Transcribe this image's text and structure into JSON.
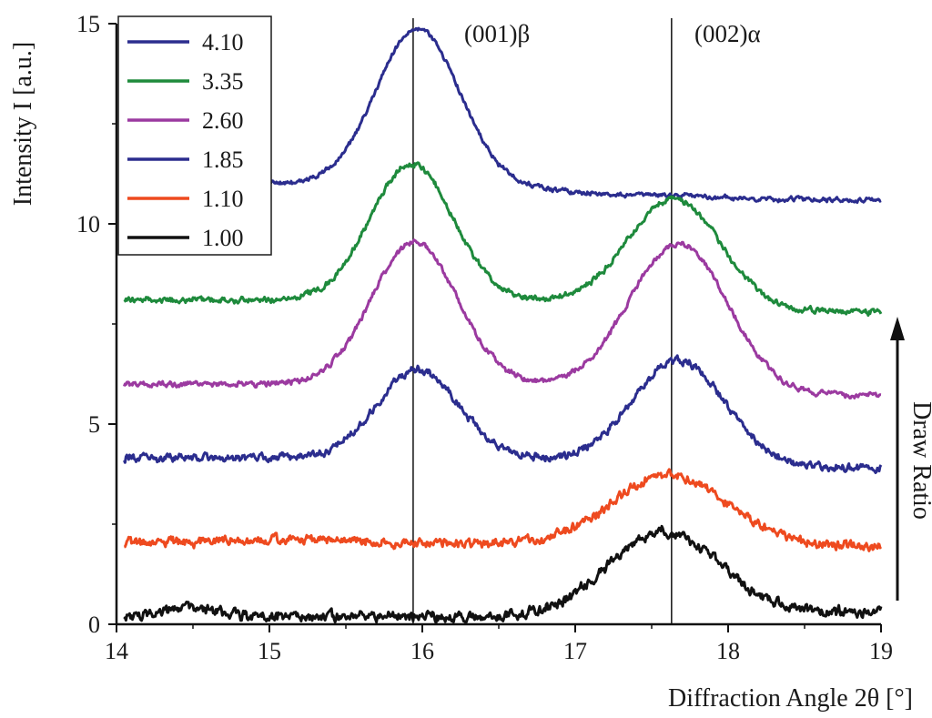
{
  "chart_data": {
    "type": "line",
    "title": "",
    "xlabel": "Diffraction Angle 2θ [°]",
    "ylabel": "Intensity I [a.u.]",
    "xlim": [
      14,
      19
    ],
    "ylim": [
      0,
      15
    ],
    "x_ticks": [
      14,
      15,
      16,
      17,
      18,
      19
    ],
    "y_ticks": [
      0,
      5,
      10,
      15
    ],
    "grid": false,
    "legend_position": "top-left",
    "x_start": 14.05,
    "x_end": 19.0,
    "reference_lines": [
      {
        "x": 15.94,
        "label": "(001)β"
      },
      {
        "x": 17.63,
        "label": "(002)α"
      }
    ],
    "arrow_label": "Draw Ratio",
    "series": [
      {
        "name": "4.10",
        "color": "#2b2d8e",
        "baseline": 11.0,
        "tail": 10.6,
        "tail_center": 17.0,
        "noise": 0.04,
        "peaks": [
          {
            "center": 15.97,
            "height": 3.9,
            "width": 0.27
          },
          {
            "center": 17.7,
            "height": 0.08,
            "width": 0.2
          }
        ]
      },
      {
        "name": "3.35",
        "color": "#1e8a3c",
        "baseline": 8.1,
        "tail": 7.8,
        "tail_center": 17.5,
        "noise": 0.05,
        "peaks": [
          {
            "center": 15.93,
            "height": 3.4,
            "width": 0.27
          },
          {
            "center": 17.65,
            "height": 2.7,
            "width": 0.3
          }
        ]
      },
      {
        "name": "2.60",
        "color": "#9b3aa0",
        "baseline": 6.0,
        "tail": 5.7,
        "tail_center": 17.5,
        "noise": 0.05,
        "peaks": [
          {
            "center": 15.95,
            "height": 3.55,
            "width": 0.28
          },
          {
            "center": 17.68,
            "height": 3.7,
            "width": 0.32
          }
        ]
      },
      {
        "name": "1.85",
        "color": "#2b2d8e",
        "baseline": 4.15,
        "tail": 3.9,
        "tail_center": 17.5,
        "noise": 0.07,
        "peaks": [
          {
            "center": 15.97,
            "height": 2.2,
            "width": 0.27
          },
          {
            "center": 17.68,
            "height": 2.6,
            "width": 0.3
          }
        ]
      },
      {
        "name": "1.10",
        "color": "#ee4a1f",
        "baseline": 2.0,
        "tail": 1.95,
        "tail_center": 17.5,
        "noise": 0.08,
        "peaks": [
          {
            "center": 15.0,
            "height": 0.1,
            "width": 0.5
          },
          {
            "center": 17.62,
            "height": 1.75,
            "width": 0.38
          }
        ]
      },
      {
        "name": "1.00",
        "color": "#111111",
        "baseline": 0.2,
        "tail": 0.3,
        "tail_center": 17.5,
        "noise": 0.09,
        "peaks": [
          {
            "center": 14.5,
            "height": 0.2,
            "width": 0.15
          },
          {
            "center": 17.58,
            "height": 2.05,
            "width": 0.36
          }
        ]
      }
    ]
  }
}
